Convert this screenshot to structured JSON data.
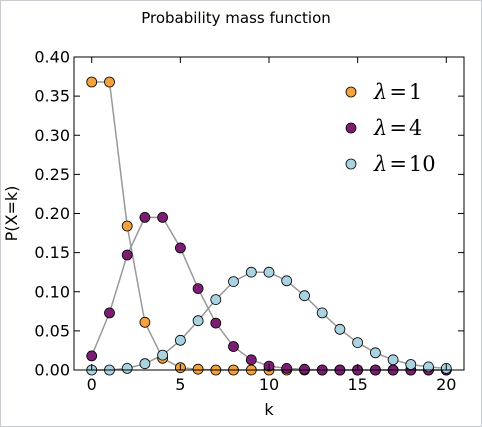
{
  "colors": {
    "line": "#999999",
    "marker_edge": "#000000",
    "axes": "#000000",
    "background": "#ffffff"
  },
  "chart_data": {
    "type": "line",
    "title": "Probability mass function",
    "xlabel": "k",
    "ylabel": "P(X=k)",
    "xlim": [
      -1,
      21
    ],
    "ylim": [
      0,
      0.4
    ],
    "xticks": [
      0,
      5,
      10,
      15,
      20
    ],
    "xtick_labels": [
      "0",
      "5",
      "10",
      "15",
      "20"
    ],
    "yticks": [
      0.0,
      0.05,
      0.1,
      0.15,
      0.2,
      0.25,
      0.3,
      0.35,
      0.4
    ],
    "ytick_labels": [
      "0.00",
      "0.05",
      "0.10",
      "0.15",
      "0.20",
      "0.25",
      "0.30",
      "0.35",
      "0.40"
    ],
    "grid": false,
    "legend_position": "top-right",
    "series": [
      {
        "name": "λ = 1",
        "legend_lambda": "λ",
        "legend_value": "1",
        "color": "#f4a23c",
        "x": [
          0,
          1,
          2,
          3,
          4,
          5,
          6,
          7,
          8,
          9,
          10,
          11,
          12,
          13,
          14,
          15,
          16,
          17,
          18,
          19,
          20
        ],
        "values": [
          0.368,
          0.368,
          0.184,
          0.061,
          0.015,
          0.003,
          0.001,
          0.0,
          0.0,
          0.0,
          0.0,
          0.0,
          0.0,
          0.0,
          0.0,
          0.0,
          0.0,
          0.0,
          0.0,
          0.0,
          0.0
        ]
      },
      {
        "name": "λ = 4",
        "legend_lambda": "λ",
        "legend_value": "4",
        "color": "#7b1d73",
        "x": [
          0,
          1,
          2,
          3,
          4,
          5,
          6,
          7,
          8,
          9,
          10,
          11,
          12,
          13,
          14,
          15,
          16,
          17,
          18,
          19,
          20
        ],
        "values": [
          0.018,
          0.073,
          0.147,
          0.195,
          0.195,
          0.156,
          0.104,
          0.06,
          0.03,
          0.013,
          0.005,
          0.002,
          0.001,
          0.0,
          0.0,
          0.0,
          0.0,
          0.0,
          0.0,
          0.0,
          0.0
        ]
      },
      {
        "name": "λ = 10",
        "legend_lambda": "λ",
        "legend_value": "10",
        "color": "#a9d3e0",
        "x": [
          0,
          1,
          2,
          3,
          4,
          5,
          6,
          7,
          8,
          9,
          10,
          11,
          12,
          13,
          14,
          15,
          16,
          17,
          18,
          19,
          20
        ],
        "values": [
          0.0,
          0.0,
          0.002,
          0.008,
          0.019,
          0.038,
          0.063,
          0.09,
          0.113,
          0.125,
          0.125,
          0.114,
          0.095,
          0.073,
          0.052,
          0.035,
          0.022,
          0.013,
          0.007,
          0.004,
          0.002
        ]
      }
    ]
  }
}
